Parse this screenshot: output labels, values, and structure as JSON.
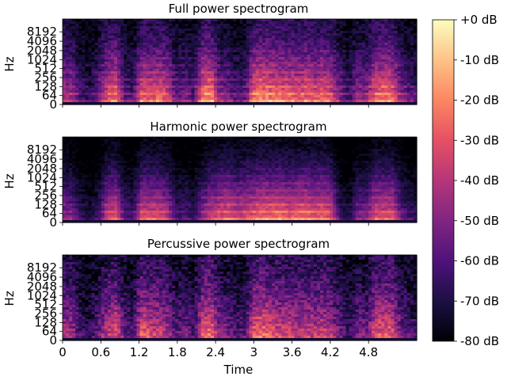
{
  "chart_data": [
    {
      "type": "heatmap",
      "title": "Full power spectrogram",
      "ylabel": "Hz",
      "xlabel": "",
      "y_scale": "log",
      "y_ticks": [
        "0",
        "64",
        "128",
        "256",
        "512",
        "1024",
        "2048",
        "4096",
        "8192"
      ],
      "x_ticks": [],
      "xlim": [
        0,
        5.0
      ],
      "ylim": [
        0,
        11025
      ],
      "energy_profile": [
        0.6,
        0.55,
        0.3,
        0.25,
        0.45,
        0.75,
        0.8,
        0.4,
        0.35,
        0.8,
        0.75,
        0.8,
        0.7,
        0.4,
        0.45,
        0.35,
        0.85,
        0.9,
        0.5,
        0.45,
        0.35,
        0.4,
        0.85,
        0.9,
        0.85,
        0.8,
        0.8,
        0.75,
        0.8,
        0.75,
        0.8,
        0.7,
        0.45,
        0.3,
        0.55,
        0.5,
        0.8,
        0.85,
        0.8,
        0.5,
        0.4,
        0.3
      ]
    },
    {
      "type": "heatmap",
      "title": "Harmonic power spectrogram",
      "ylabel": "Hz",
      "xlabel": "",
      "y_scale": "log",
      "y_ticks": [
        "0",
        "64",
        "128",
        "256",
        "512",
        "1024",
        "2048",
        "4096",
        "8192"
      ],
      "x_ticks": [],
      "xlim": [
        0,
        5.0
      ],
      "ylim": [
        0,
        11025
      ],
      "energy_profile": [
        0.55,
        0.5,
        0.3,
        0.25,
        0.35,
        0.7,
        0.75,
        0.4,
        0.35,
        0.75,
        0.75,
        0.75,
        0.65,
        0.35,
        0.4,
        0.3,
        0.55,
        0.7,
        0.75,
        0.8,
        0.7,
        0.75,
        0.8,
        0.85,
        0.85,
        0.85,
        0.8,
        0.85,
        0.85,
        0.8,
        0.85,
        0.7,
        0.3,
        0.25,
        0.5,
        0.5,
        0.75,
        0.75,
        0.75,
        0.45,
        0.35,
        0.3
      ]
    },
    {
      "type": "heatmap",
      "title": "Percussive power spectrogram",
      "ylabel": "Hz",
      "xlabel": "Time",
      "y_scale": "log",
      "y_ticks": [
        "0",
        "64",
        "128",
        "256",
        "512",
        "1024",
        "2048",
        "4096",
        "8192"
      ],
      "x_ticks": [
        "0",
        "0.6",
        "1.2",
        "1.8",
        "2.4",
        "3",
        "3.6",
        "4.2",
        "4.8"
      ],
      "xlim": [
        0,
        5.0
      ],
      "ylim": [
        0,
        11025
      ],
      "energy_profile": [
        0.6,
        0.55,
        0.3,
        0.25,
        0.45,
        0.65,
        0.75,
        0.4,
        0.35,
        0.8,
        0.7,
        0.7,
        0.6,
        0.4,
        0.45,
        0.35,
        0.75,
        0.85,
        0.5,
        0.45,
        0.35,
        0.4,
        0.8,
        0.85,
        0.75,
        0.7,
        0.7,
        0.65,
        0.7,
        0.65,
        0.7,
        0.6,
        0.45,
        0.3,
        0.5,
        0.45,
        0.75,
        0.8,
        0.75,
        0.45,
        0.35,
        0.3
      ]
    }
  ],
  "colorbar": {
    "colormap": "magma",
    "range": [
      -80,
      0
    ],
    "unit": "dB",
    "tick_labels": [
      "+0 dB",
      "-10 dB",
      "-20 dB",
      "-30 dB",
      "-40 dB",
      "-50 dB",
      "-60 dB",
      "-70 dB",
      "-80 dB"
    ],
    "tick_values": [
      0,
      -10,
      -20,
      -30,
      -40,
      -50,
      -60,
      -70,
      -80
    ]
  }
}
